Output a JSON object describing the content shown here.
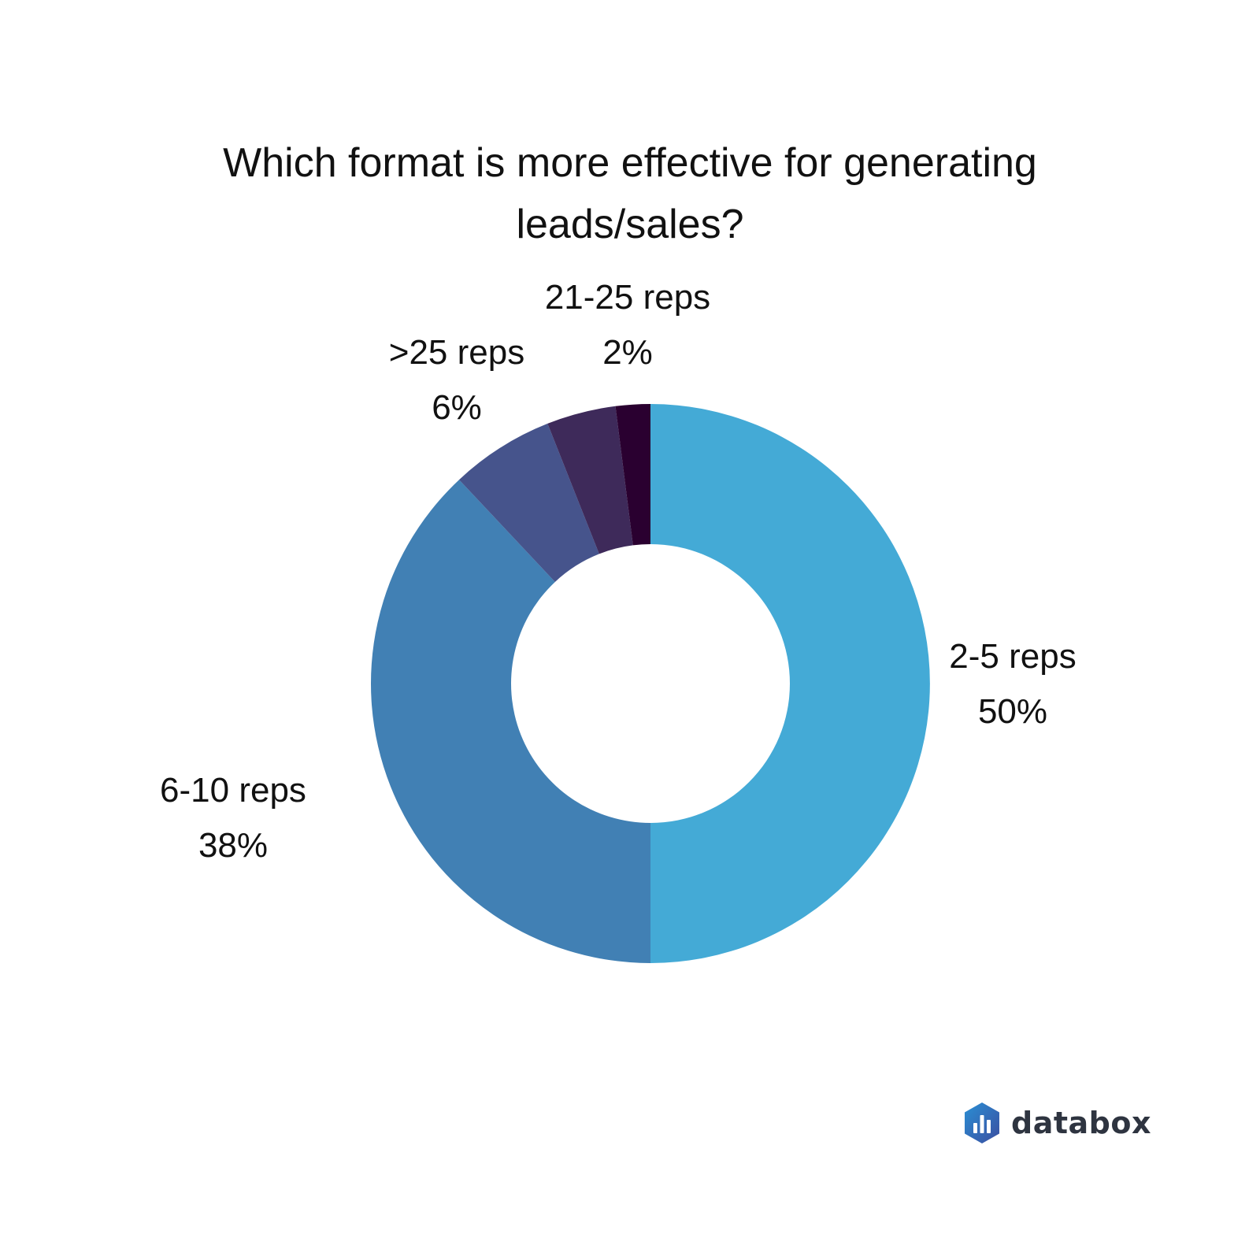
{
  "chart_data": {
    "type": "pie",
    "variant": "donut",
    "title": "Which format is more effective for generating leads/sales?",
    "start": "top",
    "direction": "clockwise",
    "slices": [
      {
        "label": "2-5 reps",
        "value": 50,
        "value_label": "50%",
        "color": "#44aad6"
      },
      {
        "label": "6-10 reps",
        "value": 38,
        "value_label": "38%",
        "color": "#4180b4"
      },
      {
        "label": ">25 reps",
        "value": 6,
        "value_label": "6%",
        "color": "#46548c"
      },
      {
        "label": "",
        "value": 4,
        "value_label": "",
        "color": "#3e2a5a"
      },
      {
        "label": "21-25 reps",
        "value": 2,
        "value_label": "2%",
        "color": "#2a0030"
      }
    ]
  },
  "brand": {
    "name": "databox",
    "icon": "databox-logo-icon",
    "icon_colors": [
      "#2a8fd4",
      "#3b4ea0"
    ]
  }
}
